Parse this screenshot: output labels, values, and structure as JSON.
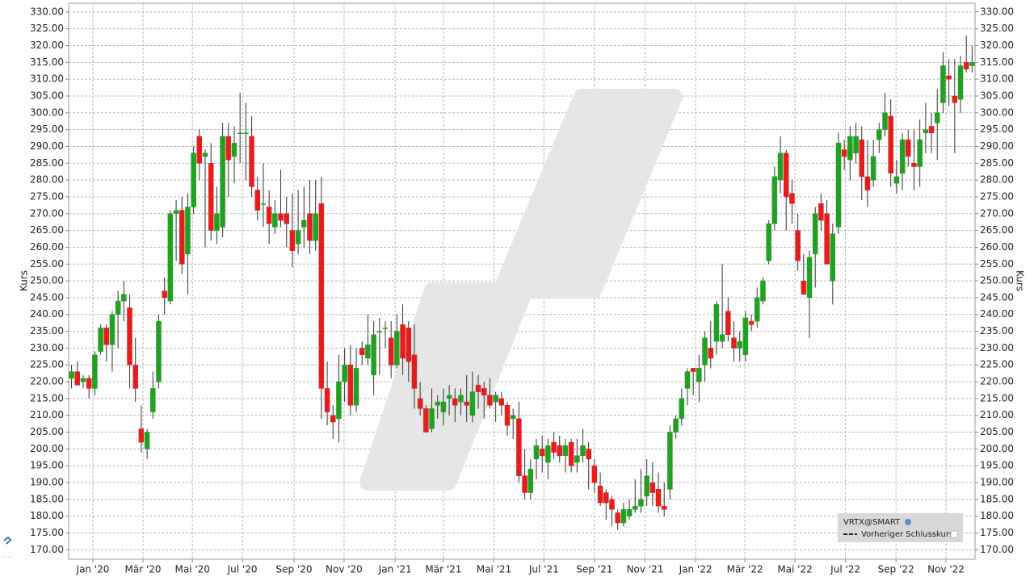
{
  "chart_data": {
    "type": "candlestick",
    "y_label": "Kurs",
    "ylim": [
      167.2,
      332.6
    ],
    "xlim": [
      -0.5,
      155.5
    ],
    "grid": true,
    "up_color": "#22a022",
    "down_color": "#e41e1e",
    "legend_position": "bottom-right",
    "yticks": [
      {
        "value": 170,
        "label": "170.00"
      },
      {
        "value": 175,
        "label": "175.00"
      },
      {
        "value": 180,
        "label": "180.00"
      },
      {
        "value": 185,
        "label": "185.00"
      },
      {
        "value": 190,
        "label": "190.00"
      },
      {
        "value": 195,
        "label": "195.00"
      },
      {
        "value": 200,
        "label": "200.00"
      },
      {
        "value": 205,
        "label": "205.00"
      },
      {
        "value": 210,
        "label": "210.00"
      },
      {
        "value": 215,
        "label": "215.00"
      },
      {
        "value": 220,
        "label": "220.00"
      },
      {
        "value": 225,
        "label": "225.00"
      },
      {
        "value": 230,
        "label": "230.00"
      },
      {
        "value": 235,
        "label": "235.00"
      },
      {
        "value": 240,
        "label": "240.00"
      },
      {
        "value": 245,
        "label": "245.00"
      },
      {
        "value": 250,
        "label": "250.00"
      },
      {
        "value": 255,
        "label": "255.00"
      },
      {
        "value": 260,
        "label": "260.00"
      },
      {
        "value": 265,
        "label": "265.00"
      },
      {
        "value": 270,
        "label": "270.00"
      },
      {
        "value": 275,
        "label": "275.00"
      },
      {
        "value": 280,
        "label": "280.00"
      },
      {
        "value": 285,
        "label": "285.00"
      },
      {
        "value": 290,
        "label": "290.00"
      },
      {
        "value": 295,
        "label": "295.00"
      },
      {
        "value": 300,
        "label": "300.00"
      },
      {
        "value": 305,
        "label": "305.00"
      },
      {
        "value": 310,
        "label": "310.00"
      },
      {
        "value": 315,
        "label": "315.00"
      },
      {
        "value": 320,
        "label": "320.00"
      },
      {
        "value": 325,
        "label": "325.00"
      },
      {
        "value": 330,
        "label": "330.00"
      }
    ],
    "xticks": [
      {
        "value": 3.67,
        "label": "Jan '20"
      },
      {
        "value": 12.3,
        "label": "Mär '20"
      },
      {
        "value": 20.8,
        "label": "Mai '20"
      },
      {
        "value": 29.4,
        "label": "Jul '20"
      },
      {
        "value": 38.3,
        "label": "Sep '20"
      },
      {
        "value": 46.9,
        "label": "Nov '20"
      },
      {
        "value": 55.7,
        "label": "Jan '21"
      },
      {
        "value": 64.0,
        "label": "Mär '21"
      },
      {
        "value": 72.7,
        "label": "Mai '21"
      },
      {
        "value": 81.3,
        "label": "Jul '21"
      },
      {
        "value": 90.0,
        "label": "Sep '21"
      },
      {
        "value": 98.7,
        "label": "Nov '21"
      },
      {
        "value": 107.4,
        "label": "Jan '22"
      },
      {
        "value": 115.9,
        "label": "Mär '22"
      },
      {
        "value": 124.5,
        "label": "Mai '22"
      },
      {
        "value": 133.2,
        "label": "Jul '22"
      },
      {
        "value": 141.9,
        "label": "Sep '22"
      },
      {
        "value": 150.5,
        "label": "Nov '22"
      }
    ],
    "series": [
      {
        "name": "VRTX@SMART",
        "ohlc": [
          [
            221,
            225,
            218,
            223
          ],
          [
            223,
            226,
            219,
            219
          ],
          [
            220,
            222,
            218,
            221
          ],
          [
            221,
            222,
            215,
            218
          ],
          [
            218,
            229,
            216,
            228
          ],
          [
            229,
            237,
            228,
            236
          ],
          [
            236,
            237,
            226,
            231
          ],
          [
            231,
            241,
            223,
            240
          ],
          [
            240,
            247,
            230,
            244
          ],
          [
            244,
            250,
            238,
            246
          ],
          [
            242,
            246,
            218,
            225
          ],
          [
            225,
            233,
            214,
            218
          ],
          [
            206,
            213,
            199,
            202
          ],
          [
            200,
            206,
            197,
            205
          ],
          [
            211,
            223,
            209,
            218
          ],
          [
            220,
            240,
            218,
            238
          ],
          [
            247,
            251,
            240,
            245
          ],
          [
            244,
            271,
            243,
            270
          ],
          [
            270,
            274,
            256,
            271
          ],
          [
            271,
            275,
            252,
            255
          ],
          [
            258,
            276,
            246,
            272
          ],
          [
            272,
            290,
            270,
            288
          ],
          [
            293,
            295,
            280,
            285
          ],
          [
            287,
            289,
            260,
            288
          ],
          [
            285,
            291,
            262,
            265
          ],
          [
            265,
            278,
            261,
            270
          ],
          [
            266,
            297,
            263,
            293
          ],
          [
            293,
            297,
            275,
            286
          ],
          [
            287,
            296,
            279,
            291
          ],
          [
            294,
            306,
            285,
            294
          ],
          [
            294,
            303,
            280,
            294
          ],
          [
            293,
            299,
            275,
            278
          ],
          [
            277,
            281,
            268,
            271
          ],
          [
            273,
            285,
            266,
            273
          ],
          [
            272,
            277,
            261,
            267
          ],
          [
            266,
            274,
            264,
            270
          ],
          [
            270,
            283,
            266,
            268
          ],
          [
            270,
            275,
            260,
            267
          ],
          [
            265,
            276,
            254,
            259
          ],
          [
            261,
            277,
            258,
            265
          ],
          [
            266,
            278,
            260,
            268
          ],
          [
            270,
            280,
            258,
            262
          ],
          [
            262,
            280,
            259,
            270
          ],
          [
            273,
            281,
            209,
            218
          ],
          [
            218,
            226,
            207,
            211
          ],
          [
            210,
            213,
            203,
            208
          ],
          [
            209,
            228,
            202,
            220
          ],
          [
            220,
            230,
            214,
            225
          ],
          [
            225,
            231,
            210,
            213
          ],
          [
            213,
            230,
            211,
            224
          ],
          [
            230,
            232,
            225,
            228
          ],
          [
            227,
            240,
            225,
            231
          ],
          [
            222,
            238,
            216,
            234
          ],
          [
            235,
            239,
            222,
            235
          ],
          [
            236,
            238,
            230,
            236
          ],
          [
            233,
            238,
            221,
            225
          ],
          [
            225,
            240,
            224,
            235
          ],
          [
            237,
            243,
            222,
            227
          ],
          [
            236,
            238,
            220,
            226
          ],
          [
            228,
            237,
            212,
            218
          ],
          [
            215,
            220,
            210,
            212
          ],
          [
            212,
            213,
            205,
            205
          ],
          [
            206,
            218,
            205,
            212
          ],
          [
            213,
            216,
            209,
            214
          ],
          [
            211,
            218,
            207,
            214
          ],
          [
            215,
            219,
            210,
            216
          ],
          [
            215,
            218,
            208,
            213
          ],
          [
            214,
            218,
            210,
            216
          ],
          [
            214,
            222,
            208,
            213
          ],
          [
            210,
            223,
            208,
            217
          ],
          [
            219,
            222,
            212,
            217
          ],
          [
            218,
            220,
            209,
            216
          ],
          [
            216,
            221,
            212,
            213
          ],
          [
            214,
            217,
            208,
            216
          ],
          [
            215,
            217,
            210,
            213
          ],
          [
            213,
            214,
            204,
            207
          ],
          [
            209,
            212,
            203,
            210
          ],
          [
            209,
            214,
            190,
            192
          ],
          [
            192,
            200,
            185,
            187
          ],
          [
            187,
            197,
            185,
            194
          ],
          [
            197,
            203,
            191,
            201
          ],
          [
            200,
            204,
            193,
            198
          ],
          [
            196,
            203,
            191,
            201
          ],
          [
            202,
            205,
            197,
            199
          ],
          [
            201,
            204,
            196,
            198
          ],
          [
            198,
            203,
            193,
            201
          ],
          [
            202,
            203,
            193,
            195
          ],
          [
            196,
            203,
            193,
            198
          ],
          [
            198,
            206,
            196,
            201
          ],
          [
            200,
            202,
            188,
            197
          ],
          [
            195,
            197,
            187,
            190
          ],
          [
            189,
            193,
            183,
            184
          ],
          [
            187,
            188,
            179,
            184
          ],
          [
            185,
            186,
            177,
            182
          ],
          [
            181,
            182,
            176,
            178
          ],
          [
            178,
            184,
            177,
            182
          ],
          [
            180,
            185,
            179,
            182
          ],
          [
            182,
            191,
            181,
            183
          ],
          [
            183,
            194,
            181,
            185
          ],
          [
            186,
            197,
            183,
            192
          ],
          [
            190,
            196,
            183,
            187
          ],
          [
            188,
            193,
            181,
            183
          ],
          [
            183,
            190,
            180,
            182
          ],
          [
            188,
            207,
            185,
            205
          ],
          [
            205,
            210,
            203,
            209
          ],
          [
            209,
            218,
            207,
            215
          ],
          [
            218,
            224,
            213,
            223
          ],
          [
            224,
            224,
            216,
            223
          ],
          [
            220,
            228,
            214,
            224
          ],
          [
            225,
            235,
            220,
            233
          ],
          [
            230,
            238,
            224,
            227
          ],
          [
            232,
            244,
            228,
            243
          ],
          [
            232,
            255,
            230,
            234
          ],
          [
            241,
            245,
            232,
            234
          ],
          [
            233,
            238,
            226,
            230
          ],
          [
            230,
            235,
            226,
            232
          ],
          [
            228,
            241,
            226,
            239
          ],
          [
            238,
            240,
            235,
            237
          ],
          [
            238,
            248,
            236,
            245
          ],
          [
            244,
            251,
            243,
            250
          ],
          [
            256,
            268,
            255,
            267
          ],
          [
            267,
            284,
            265,
            281
          ],
          [
            280,
            293,
            276,
            288
          ],
          [
            288,
            289,
            265,
            275
          ],
          [
            276,
            280,
            267,
            273
          ],
          [
            265,
            270,
            253,
            256
          ],
          [
            250,
            258,
            246,
            246
          ],
          [
            245,
            259,
            233,
            257
          ],
          [
            258,
            272,
            248,
            270
          ],
          [
            273,
            276,
            265,
            268
          ],
          [
            270,
            274,
            256,
            255
          ],
          [
            250,
            267,
            243,
            264
          ],
          [
            266,
            294,
            264,
            291
          ],
          [
            289,
            292,
            283,
            287
          ],
          [
            286,
            296,
            280,
            293
          ],
          [
            288,
            297,
            285,
            293
          ],
          [
            292,
            296,
            274,
            281
          ],
          [
            281,
            292,
            272,
            277
          ],
          [
            280,
            292,
            278,
            287
          ],
          [
            292,
            297,
            288,
            295
          ],
          [
            295,
            306,
            293,
            300
          ],
          [
            299,
            304,
            278,
            282
          ],
          [
            279,
            286,
            276,
            281
          ],
          [
            282,
            294,
            277,
            292
          ],
          [
            292,
            295,
            284,
            287
          ],
          [
            285,
            295,
            277,
            284
          ],
          [
            284,
            298,
            278,
            292
          ],
          [
            294,
            303,
            288,
            295
          ],
          [
            296,
            300,
            288,
            294
          ],
          [
            297,
            307,
            286,
            300
          ],
          [
            303,
            318,
            300,
            314
          ],
          [
            311,
            316,
            302,
            310
          ],
          [
            305,
            316,
            288,
            303
          ],
          [
            304,
            317,
            300,
            314
          ],
          [
            315,
            323,
            312,
            313
          ],
          [
            314,
            320,
            312,
            315
          ]
        ]
      },
      {
        "name": "Vorheriger Schlusskurs",
        "style": "dashed"
      }
    ]
  }
}
